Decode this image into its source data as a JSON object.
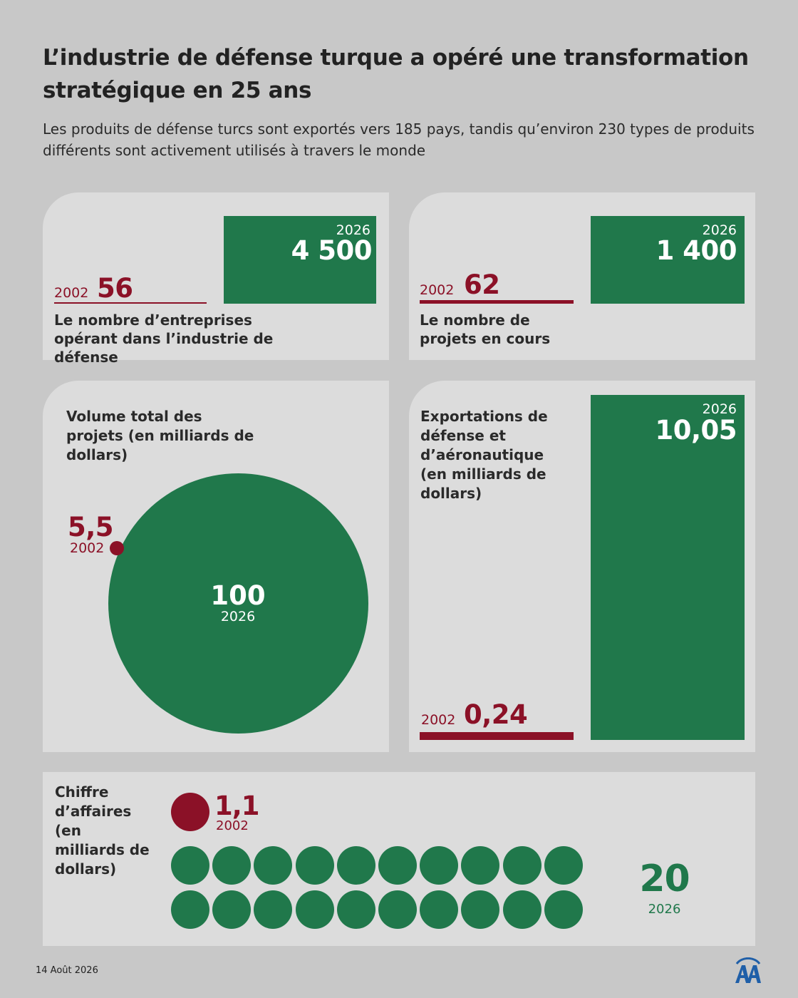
{
  "header": {
    "title": "L’industrie de défense turque a opéré une transformation stratégique en 25 ans",
    "subtitle": "Les produits de défense turcs sont exportés vers 185 pays, tandis qu’environ 230 types de produits différents sont activement utilisés à travers le monde"
  },
  "colors": {
    "accent_green": "#20784b",
    "accent_red": "#8b1127",
    "card_bg": "#dcdcdc",
    "page_bg": "#c8c8c8"
  },
  "footer": {
    "date": "14 Août 2026",
    "logo": "aa-logo-icon"
  },
  "chart_data": [
    {
      "type": "bar",
      "label": "Le nombre d’entreprises opérant dans l’industrie de défense",
      "categories": [
        "2002",
        "2026"
      ],
      "values": [
        56,
        4500
      ],
      "value_labels": [
        "56",
        "4 500"
      ]
    },
    {
      "type": "bar",
      "label": "Le nombre de projets en cours",
      "categories": [
        "2002",
        "2026"
      ],
      "values": [
        62,
        1400
      ],
      "value_labels": [
        "62",
        "1 400"
      ]
    },
    {
      "type": "bubble",
      "label": "Volume total des projets (en milliards de dollars)",
      "categories": [
        "2002",
        "2026"
      ],
      "values": [
        5.5,
        100
      ],
      "value_labels": [
        "5,5",
        "100"
      ]
    },
    {
      "type": "bar",
      "label": "Exportations de défense et d’aéronautique (en milliards de dollars)",
      "categories": [
        "2002",
        "2026"
      ],
      "values": [
        0.24,
        10.05
      ],
      "value_labels": [
        "0,24",
        "10,05"
      ]
    },
    {
      "type": "pictogram",
      "label": "Chiffre d’affaires (en milliards de dollars)",
      "categories": [
        "2002",
        "2026"
      ],
      "values": [
        1.1,
        20
      ],
      "value_labels": [
        "1,1",
        "20"
      ]
    }
  ]
}
